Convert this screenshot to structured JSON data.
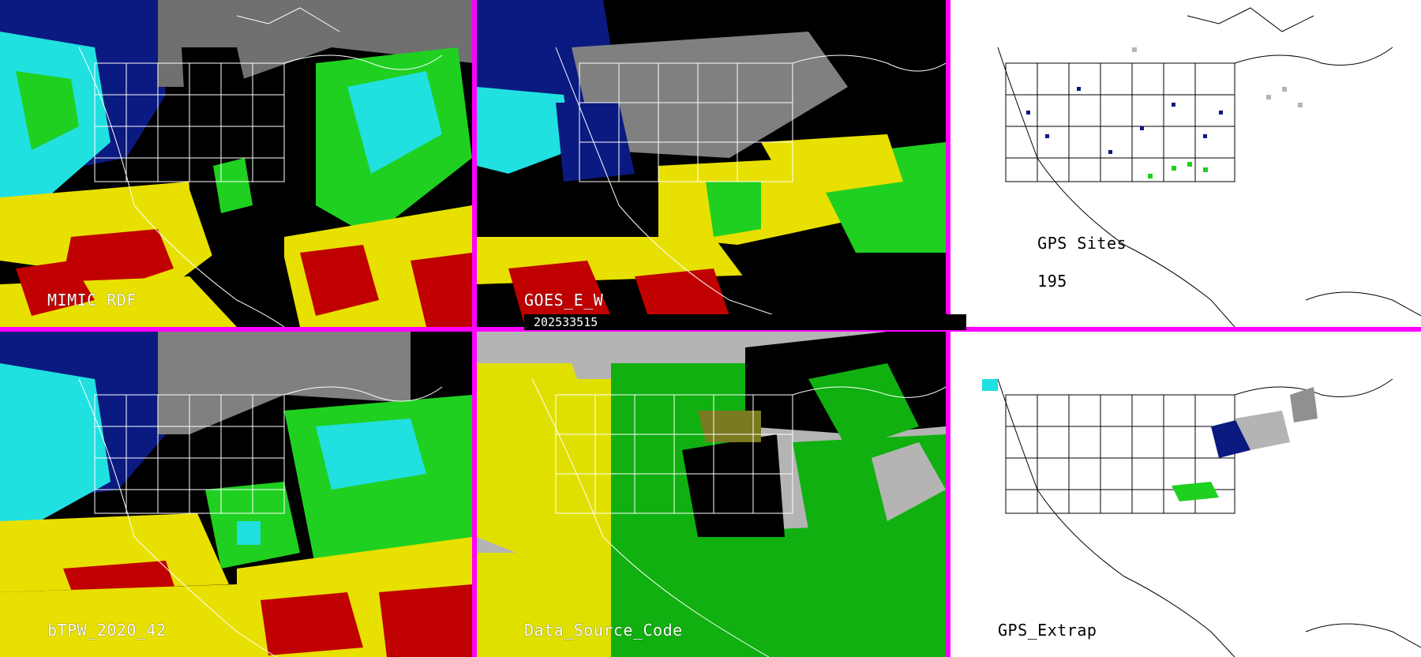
{
  "panels": [
    {
      "id": "mimic",
      "label": "MIMIC RDF"
    },
    {
      "id": "goes",
      "label": "GOES_E_W"
    },
    {
      "id": "gps-sites",
      "label": "GPS Sites",
      "count": "195"
    },
    {
      "id": "btpw",
      "label": "bTPW_2020_42"
    },
    {
      "id": "data-source",
      "label": "Data_Source_Code"
    },
    {
      "id": "gps-extrap",
      "label": "GPS_Extrap"
    }
  ],
  "timestamp": "202533515",
  "colors": {
    "divider": "#ff00ff",
    "dry": "#0a1a80",
    "low": "#20e0e0",
    "mid": "#20d020",
    "high": "#e8e000",
    "very_high": "#c00000",
    "missing": "#000000",
    "ds_yellow": "#e0e000",
    "ds_green": "#10b010",
    "ds_gray": "#b4b4b4"
  }
}
